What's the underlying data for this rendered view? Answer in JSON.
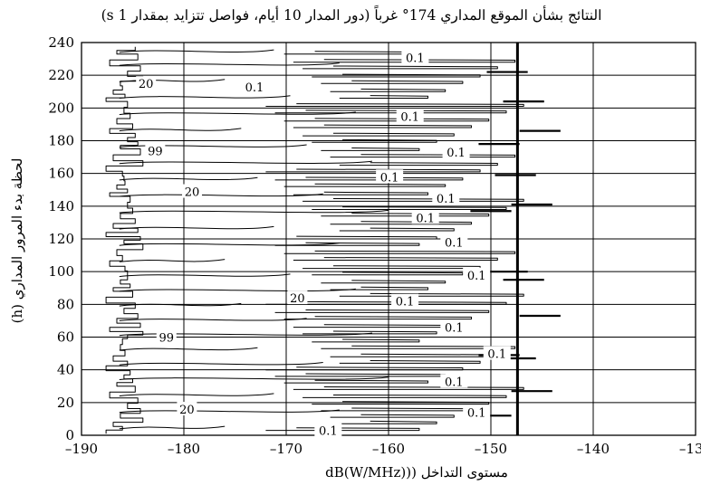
{
  "chart_data": {
    "type": "line",
    "title": "النتائج بشأن الموقع المداري 174° غرباً (دور المدار 10 أيام، فواصل تتزايد بمقدار 1 s)",
    "xlabel": "مستوى التداخل ((dB(W/MHz)",
    "ylabel": "لحظة بدء المرور المداري (h)",
    "xlim": [
      -190,
      -130
    ],
    "ylim": [
      0,
      240
    ],
    "xticks": [
      -190,
      -180,
      -170,
      -160,
      -150,
      -140,
      -130
    ],
    "yticks": [
      0,
      20,
      40,
      60,
      80,
      100,
      120,
      140,
      160,
      180,
      200,
      220,
      240
    ],
    "xtick_labels": [
      "–190",
      "–180",
      "–170",
      "–160",
      "–150",
      "–140",
      "–130"
    ],
    "ytick_labels": [
      "0",
      "20",
      "40",
      "60",
      "80",
      "100",
      "120",
      "140",
      "160",
      "180",
      "200",
      "220",
      "240"
    ],
    "grid": true,
    "threshold_line": {
      "x": -147.4
    },
    "contour_levels": [
      "99",
      "20",
      "0.1"
    ],
    "contour_labels": [
      {
        "text": "0.1",
        "x": -157.4,
        "y": 231
      },
      {
        "text": "0.1",
        "x": -173.1,
        "y": 213
      },
      {
        "text": "20",
        "x": -183.7,
        "y": 215
      },
      {
        "text": "0.1",
        "x": -157.9,
        "y": 195
      },
      {
        "text": "99",
        "x": -182.8,
        "y": 174
      },
      {
        "text": "0.1",
        "x": -153.4,
        "y": 173
      },
      {
        "text": "0.1",
        "x": -159.9,
        "y": 158
      },
      {
        "text": "20",
        "x": -179.2,
        "y": 149
      },
      {
        "text": "0.1",
        "x": -154.4,
        "y": 145
      },
      {
        "text": "0.1",
        "x": -156.4,
        "y": 133
      },
      {
        "text": "0.1",
        "x": -153.6,
        "y": 118
      },
      {
        "text": "0.1",
        "x": -151.4,
        "y": 98
      },
      {
        "text": "20",
        "x": -168.9,
        "y": 84
      },
      {
        "text": "0.1",
        "x": -158.4,
        "y": 82
      },
      {
        "text": "0.1",
        "x": -153.6,
        "y": 66
      },
      {
        "text": "99",
        "x": -181.7,
        "y": 60
      },
      {
        "text": "0.1",
        "x": -149.4,
        "y": 50
      },
      {
        "text": "0.1",
        "x": -153.6,
        "y": 33
      },
      {
        "text": "20",
        "x": -179.7,
        "y": 16
      },
      {
        "text": "0.1",
        "x": -151.4,
        "y": 14
      },
      {
        "text": "0.1",
        "x": -165.9,
        "y": 3
      }
    ]
  }
}
